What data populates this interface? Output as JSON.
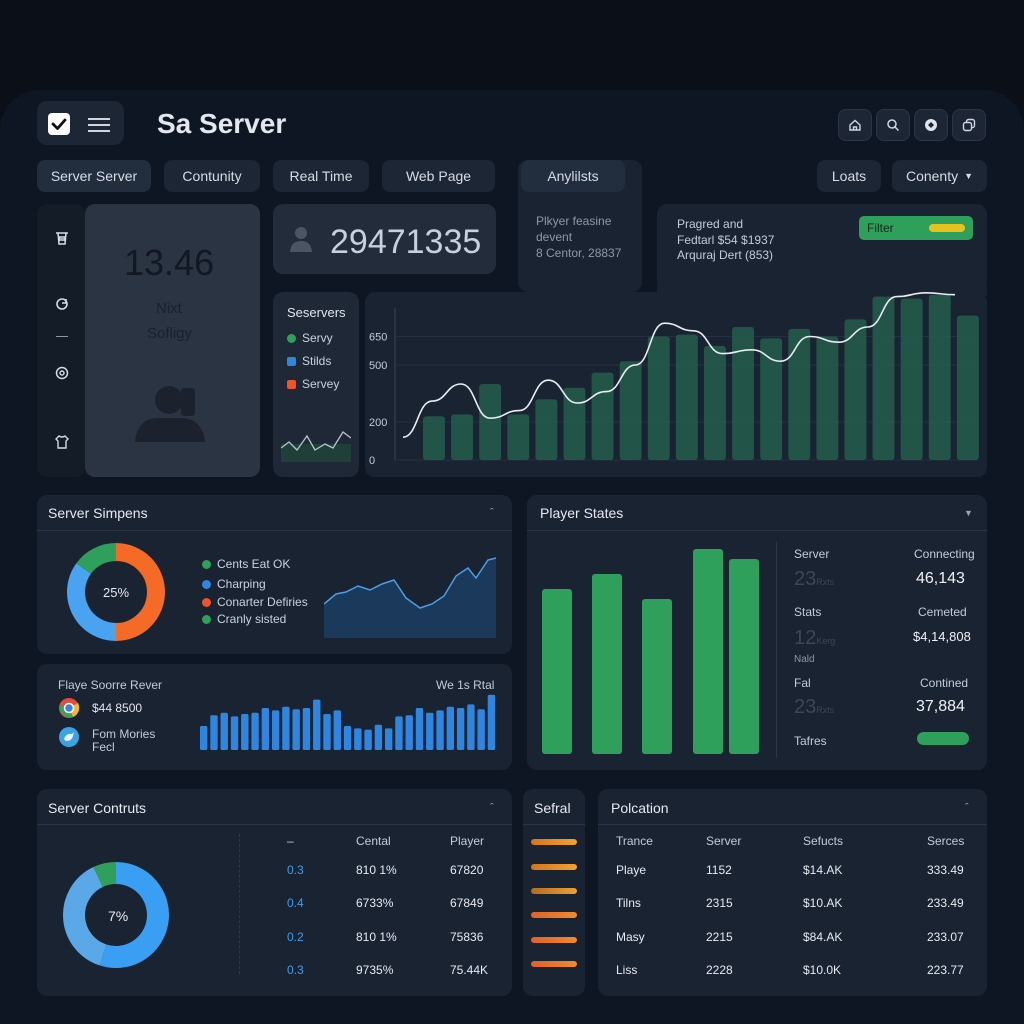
{
  "app": {
    "title": "Sa Server"
  },
  "header_icons": [
    "home-icon",
    "search-icon",
    "sync-icon",
    "copy-icon"
  ],
  "tabs": [
    {
      "label": "Server Server",
      "active": true
    },
    {
      "label": "Contunity"
    },
    {
      "label": "Real Time"
    },
    {
      "label": "Web Page"
    }
  ],
  "analytics_tab": "Anylilsts",
  "right_buttons": {
    "loats": "Loats",
    "conenty": "Conenty"
  },
  "sidebar": {
    "icons": [
      "trash-icon",
      "refresh-icon",
      "dash-icon",
      "at-icon",
      "shirt-icon"
    ]
  },
  "profile_card": {
    "value": "13.46",
    "line1": "Nixt",
    "line2": "Sofligy"
  },
  "player_count": {
    "value": "29471335"
  },
  "player_info": {
    "line1": "Plkyer feasine",
    "line2": "devent",
    "line3": "8 Centor, 28837"
  },
  "summary_box": {
    "line1": "Pragred and",
    "line2": "Fedtarl $54 $1937",
    "line3": "Arquraj Dert (853)",
    "filter_label": "Filter"
  },
  "servers_legend": {
    "title": "Seservers",
    "items": [
      {
        "label": "Servy",
        "color": "#2fa05c"
      },
      {
        "label": "Stilds",
        "color": "#2e86e0"
      },
      {
        "label": "Servey",
        "color": "#f0532a"
      }
    ]
  },
  "main_chart": {
    "y_ticks": [
      "0",
      "200",
      "500",
      "650"
    ]
  },
  "chart_data": [
    {
      "type": "bar",
      "title": "",
      "ylim": [
        0,
        800
      ],
      "y_ticks": [
        0,
        200,
        500,
        650
      ],
      "bars": [
        230,
        240,
        400,
        240,
        320,
        380,
        460,
        520,
        650,
        660,
        600,
        700,
        640,
        690,
        650,
        740,
        860,
        850,
        870,
        760
      ],
      "line": [
        120,
        310,
        400,
        220,
        260,
        420,
        300,
        360,
        500,
        720,
        680,
        560,
        580,
        520,
        650,
        620,
        700,
        860,
        880,
        870
      ]
    },
    {
      "type": "pie",
      "label": "25%",
      "slices": [
        {
          "value": 50,
          "color": "#f56a27"
        },
        {
          "value": 35,
          "color": "#4aa3f0"
        },
        {
          "value": 15,
          "color": "#2fa05c"
        }
      ]
    },
    {
      "type": "bar",
      "title": "Player States",
      "values": [
        165,
        180,
        155,
        205,
        195
      ]
    },
    {
      "type": "pie",
      "label": "7%",
      "slices": [
        {
          "value": 55,
          "color": "#3a9ff2"
        },
        {
          "value": 38,
          "color": "#5aa8e8"
        },
        {
          "value": 7,
          "color": "#2fa05c"
        }
      ]
    }
  ],
  "server_simpens": {
    "title": "Server Simpens",
    "donut_label": "25%",
    "legend": [
      {
        "label": "Cents Eat OK",
        "color": "#2fa05c"
      },
      {
        "label": "Charping",
        "color": "#2e86e0"
      },
      {
        "label": "Conarter Defiries",
        "color": "#f0532a"
      },
      {
        "label": "Cranly sisted",
        "color": "#2fa05c"
      }
    ]
  },
  "player_score": {
    "title": "Flaye Soorre Rever",
    "right_label": "We 1s Rtal",
    "item1": "$44 8500",
    "item2_line1": "Fom Mories",
    "item2_line2": "Fecl",
    "bars": [
      0.4,
      0.58,
      0.62,
      0.56,
      0.6,
      0.62,
      0.7,
      0.66,
      0.72,
      0.68,
      0.7,
      0.84,
      0.6,
      0.66,
      0.4,
      0.36,
      0.34,
      0.42,
      0.36,
      0.56,
      0.58,
      0.7,
      0.62,
      0.66,
      0.72,
      0.7,
      0.76,
      0.68,
      0.92
    ]
  },
  "player_states": {
    "title": "Player States",
    "stats": [
      {
        "left_label": "Server",
        "left_value": "23",
        "left_sub": "Rxts",
        "right_label": "Connecting",
        "right_value": "46,143"
      },
      {
        "left_label": "Stats",
        "left_value": "12",
        "left_sub": "Kerg",
        "left_extra": "Nald",
        "right_label": "Cemeted",
        "right_value": "$4,14,808"
      },
      {
        "left_label": "Fal",
        "left_value": "23",
        "left_sub": "Rxts",
        "right_label": "Contined",
        "right_value": "37,884"
      }
    ],
    "footer_label": "Tafres"
  },
  "server_contruts": {
    "title": "Server Contruts",
    "donut_label": "7%",
    "columns": [
      "–",
      "Cental",
      "Player"
    ],
    "rows": [
      {
        "a": "0.3",
        "b": "810 1%",
        "c": "67820"
      },
      {
        "a": "0.4",
        "b": "6733%",
        "c": "67849"
      },
      {
        "a": "0.2",
        "b": "810 1%",
        "c": "75836"
      },
      {
        "a": "0.3",
        "b": "9735%",
        "c": "75.44K"
      }
    ]
  },
  "sefral": {
    "title": "Sefral"
  },
  "polcation": {
    "title": "Polcation",
    "columns": [
      "Trance",
      "Server",
      "Sefucts",
      "Serces"
    ],
    "rows": [
      {
        "a": "Playe",
        "b": "1152",
        "c": "$14.AK",
        "d": "333.49"
      },
      {
        "a": "Tilns",
        "b": "2315",
        "c": "$10.AK",
        "d": "233.49"
      },
      {
        "a": "Masy",
        "b": "2215",
        "c": "$84.AK",
        "d": "233.07"
      },
      {
        "a": "Liss",
        "b": "2228",
        "c": "$10.0K",
        "d": "223.77"
      }
    ]
  }
}
